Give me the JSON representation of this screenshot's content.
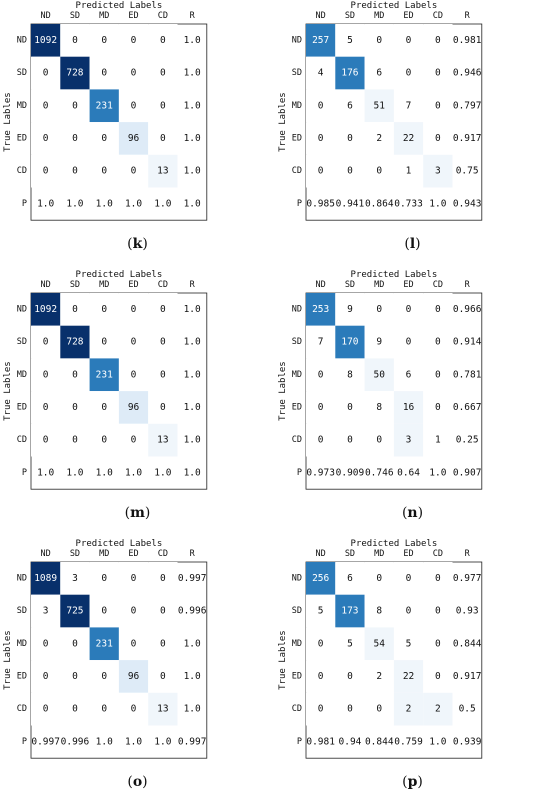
{
  "axis_text": {
    "top_label": "Predicted Labels",
    "side_label": "True Lables"
  },
  "labels": {
    "columns": [
      "ND",
      "SD",
      "MD",
      "ED",
      "CD",
      "R"
    ],
    "rows": [
      "ND",
      "SD",
      "MD",
      "ED",
      "CD",
      "P"
    ]
  },
  "colors": {
    "dark": "#08306b",
    "mid": "#2b7bba",
    "light": "#c6dbef",
    "pale": "#deebf7",
    "faint": "#f0f6fb",
    "white": "#ffffff"
  },
  "chart_data": [
    {
      "type": "heatmap",
      "caption": "(k)",
      "matrix": [
        [
          1092,
          0,
          0,
          0,
          0
        ],
        [
          0,
          728,
          0,
          0,
          0
        ],
        [
          0,
          0,
          231,
          0,
          0
        ],
        [
          0,
          0,
          0,
          96,
          0
        ],
        [
          0,
          0,
          0,
          0,
          13
        ]
      ],
      "recall": [
        "1.0",
        "1.0",
        "1.0",
        "1.0",
        "1.0"
      ],
      "precision": [
        "1.0",
        "1.0",
        "1.0",
        "1.0",
        "1.0"
      ],
      "overall": "1.0"
    },
    {
      "type": "heatmap",
      "caption": "(l)",
      "matrix": [
        [
          257,
          5,
          0,
          0,
          0
        ],
        [
          4,
          176,
          6,
          0,
          0
        ],
        [
          0,
          6,
          51,
          7,
          0
        ],
        [
          0,
          0,
          2,
          22,
          0
        ],
        [
          0,
          0,
          0,
          1,
          3
        ]
      ],
      "recall": [
        "0.981",
        "0.946",
        "0.797",
        "0.917",
        "0.75"
      ],
      "precision": [
        "0.985",
        "0.941",
        "0.864",
        "0.733",
        "1.0"
      ],
      "overall": "0.943"
    },
    {
      "type": "heatmap",
      "caption": "(m)",
      "matrix": [
        [
          1092,
          0,
          0,
          0,
          0
        ],
        [
          0,
          728,
          0,
          0,
          0
        ],
        [
          0,
          0,
          231,
          0,
          0
        ],
        [
          0,
          0,
          0,
          96,
          0
        ],
        [
          0,
          0,
          0,
          0,
          13
        ]
      ],
      "recall": [
        "1.0",
        "1.0",
        "1.0",
        "1.0",
        "1.0"
      ],
      "precision": [
        "1.0",
        "1.0",
        "1.0",
        "1.0",
        "1.0"
      ],
      "overall": "1.0"
    },
    {
      "type": "heatmap",
      "caption": "(n)",
      "matrix": [
        [
          253,
          9,
          0,
          0,
          0
        ],
        [
          7,
          170,
          9,
          0,
          0
        ],
        [
          0,
          8,
          50,
          6,
          0
        ],
        [
          0,
          0,
          8,
          16,
          0
        ],
        [
          0,
          0,
          0,
          3,
          1
        ]
      ],
      "recall": [
        "0.966",
        "0.914",
        "0.781",
        "0.667",
        "0.25"
      ],
      "precision": [
        "0.973",
        "0.909",
        "0.746",
        "0.64",
        "1.0"
      ],
      "overall": "0.907"
    },
    {
      "type": "heatmap",
      "caption": "(o)",
      "matrix": [
        [
          1089,
          3,
          0,
          0,
          0
        ],
        [
          3,
          725,
          0,
          0,
          0
        ],
        [
          0,
          0,
          231,
          0,
          0
        ],
        [
          0,
          0,
          0,
          96,
          0
        ],
        [
          0,
          0,
          0,
          0,
          13
        ]
      ],
      "recall": [
        "0.997",
        "0.996",
        "1.0",
        "1.0",
        "1.0"
      ],
      "precision": [
        "0.997",
        "0.996",
        "1.0",
        "1.0",
        "1.0"
      ],
      "overall": "0.997"
    },
    {
      "type": "heatmap",
      "caption": "(p)",
      "matrix": [
        [
          256,
          6,
          0,
          0,
          0
        ],
        [
          5,
          173,
          8,
          0,
          0
        ],
        [
          0,
          5,
          54,
          5,
          0
        ],
        [
          0,
          0,
          2,
          22,
          0
        ],
        [
          0,
          0,
          0,
          2,
          2
        ]
      ],
      "recall": [
        "0.977",
        "0.93",
        "0.844",
        "0.917",
        "0.5"
      ],
      "precision": [
        "0.981",
        "0.94",
        "0.844",
        "0.759",
        "1.0"
      ],
      "overall": "0.939"
    }
  ]
}
